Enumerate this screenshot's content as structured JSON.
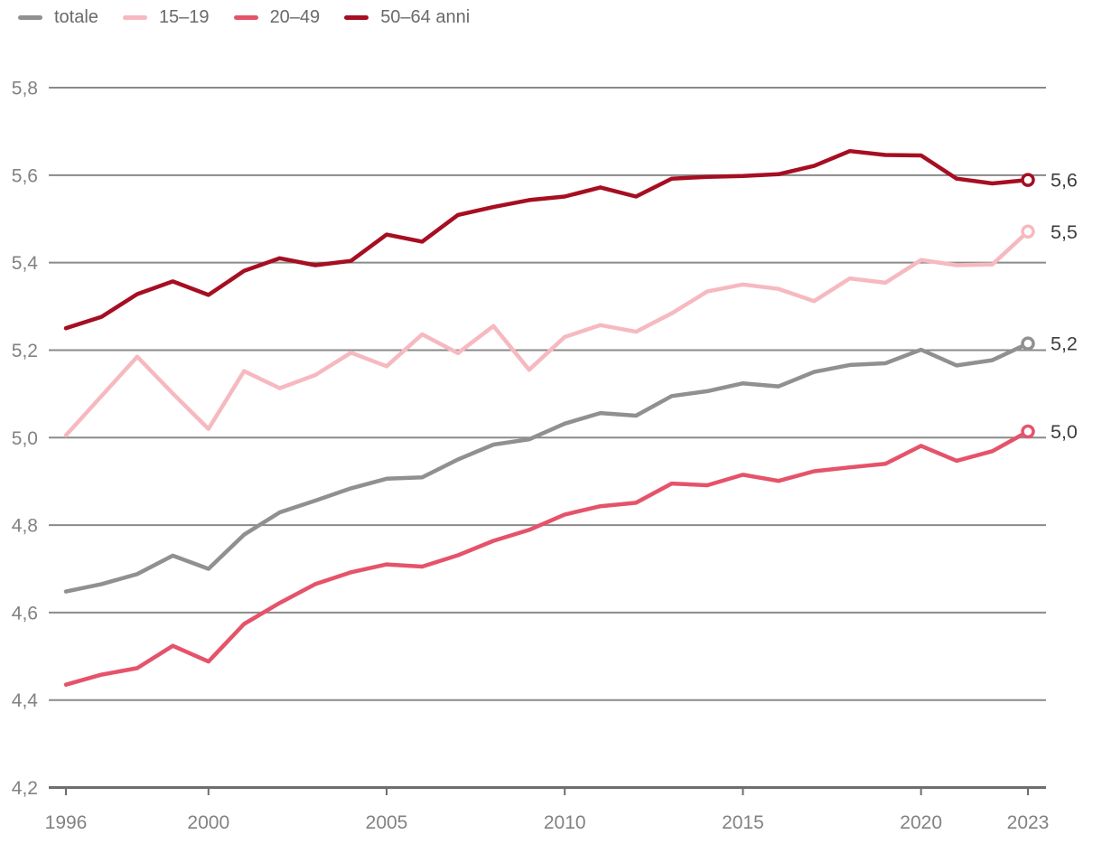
{
  "chart_data": {
    "type": "line",
    "x": [
      1996,
      1997,
      1998,
      1999,
      2000,
      2001,
      2002,
      2003,
      2004,
      2005,
      2006,
      2007,
      2008,
      2009,
      2010,
      2011,
      2012,
      2013,
      2014,
      2015,
      2016,
      2017,
      2018,
      2019,
      2020,
      2021,
      2022,
      2023
    ],
    "series": [
      {
        "name": "totale",
        "color": "#909090",
        "end_label": "5,2",
        "values": [
          4.648,
          4.665,
          4.688,
          4.73,
          4.7,
          4.778,
          4.829,
          4.856,
          4.884,
          4.906,
          4.909,
          4.95,
          4.984,
          4.996,
          5.032,
          5.056,
          5.05,
          5.095,
          5.106,
          5.124,
          5.117,
          5.15,
          5.166,
          5.17,
          5.201,
          5.165,
          5.177,
          5.215
        ]
      },
      {
        "name": "15–19",
        "color": "#f6b9bf",
        "end_label": "5,5",
        "values": [
          5.005,
          5.095,
          5.185,
          5.101,
          5.02,
          5.152,
          5.113,
          5.143,
          5.194,
          5.163,
          5.236,
          5.193,
          5.255,
          5.155,
          5.23,
          5.257,
          5.242,
          5.284,
          5.334,
          5.35,
          5.34,
          5.312,
          5.364,
          5.354,
          5.406,
          5.394,
          5.396,
          5.471
        ]
      },
      {
        "name": "20–49",
        "color": "#e5536a",
        "end_label": "5,0",
        "values": [
          4.435,
          4.458,
          4.473,
          4.524,
          4.488,
          4.574,
          4.622,
          4.665,
          4.692,
          4.71,
          4.705,
          4.731,
          4.764,
          4.789,
          4.824,
          4.843,
          4.851,
          4.895,
          4.891,
          4.915,
          4.901,
          4.923,
          4.932,
          4.94,
          4.981,
          4.947,
          4.969,
          5.014
        ]
      },
      {
        "name": "50–64 anni",
        "color": "#a60e22",
        "end_label": "5,6",
        "values": [
          5.25,
          5.276,
          5.328,
          5.357,
          5.326,
          5.381,
          5.41,
          5.394,
          5.404,
          5.464,
          5.448,
          5.509,
          5.527,
          5.543,
          5.551,
          5.572,
          5.551,
          5.592,
          5.596,
          5.598,
          5.602,
          5.621,
          5.655,
          5.646,
          5.645,
          5.592,
          5.581,
          5.589
        ]
      }
    ],
    "ylim": [
      4.2,
      5.8
    ],
    "ytick_step": 0.2,
    "ytick_labels": [
      "4,2",
      "4,4",
      "4,6",
      "4,8",
      "5,0",
      "5,2",
      "5,4",
      "5,6",
      "5,8"
    ],
    "xticks": [
      1996,
      2000,
      2005,
      2010,
      2015,
      2020,
      2023
    ],
    "xtick_labels": [
      "1996",
      "2000",
      "2005",
      "2010",
      "2015",
      "2020",
      "2023"
    ],
    "grid": "horizontal",
    "legend_position": "top-left",
    "end_markers": "open-circle"
  },
  "legend": {
    "items": [
      {
        "label": "totale"
      },
      {
        "label": "15–19"
      },
      {
        "label": "20–49"
      },
      {
        "label": "50–64 anni"
      }
    ]
  },
  "colors": {
    "background": "#ffffff",
    "gridline": "#8a8a8a",
    "axis_line": "#6e6e6e",
    "axis_text": "#828282",
    "end_label_text": "#3d3d3d",
    "legend_text": "#6a6a6a",
    "marker_fill": "#ffffff"
  }
}
